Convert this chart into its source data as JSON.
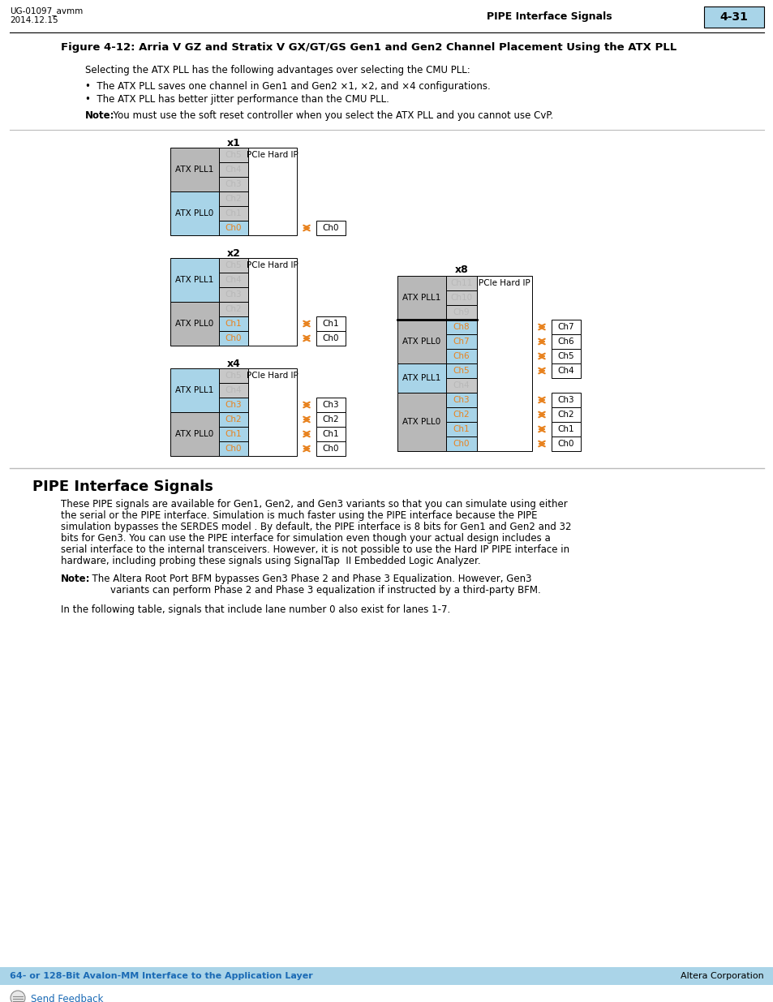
{
  "header_left1": "UG-01097_avmm",
  "header_left2": "2014.12.15",
  "header_center": "PIPE Interface Signals",
  "header_page": "4-31",
  "fig_title": "Figure 4-12: Arria V GZ and Stratix V GX/GT/GS Gen1 and Gen2 Channel Placement Using the ATX PLL",
  "para1": "Selecting the ATX PLL has the following advantages over selecting the CMU PLL:",
  "bullet1": "The ATX PLL saves one channel in Gen1 and Gen2 ×1, ×2, and ×4 configurations.",
  "bullet2": "The ATX PLL has better jitter performance than the CMU PLL.",
  "note1_bold": "Note:",
  "note1_text": "  You must use the soft reset controller when you select the ATX PLL and you cannot use CvP.",
  "section_title": "PIPE Interface Signals",
  "body1_lines": [
    "These PIPE signals are available for Gen1, Gen2, and Gen3 variants so that you can simulate using either",
    "the serial or the PIPE interface. Simulation is much faster using the PIPE interface because the PIPE",
    "simulation bypasses the SERDES model . By default, the PIPE interface is 8 bits for Gen1 and Gen2 and 32",
    "bits for Gen3. You can use the PIPE interface for simulation even though your actual design includes a",
    "serial interface to the internal transceivers. However, it is not possible to use the Hard IP PIPE interface in",
    "hardware, including probing these signals using SignalTap  II Embedded Logic Analyzer."
  ],
  "note2_bold": "Note:",
  "note2_line1": "  The Altera Root Port BFM bypasses Gen3 Phase 2 and Phase 3 Equalization. However, Gen3",
  "note2_line2": "        variants can perform Phase 2 and Phase 3 equalization if instructed by a third-party BFM.",
  "body2": "In the following table, signals that include lane number 0 also exist for lanes 1-7.",
  "footer_left": "64- or 128-Bit Avalon-MM Interface to the Application Layer",
  "footer_right": "Altera Corporation",
  "feedback_text": "Send Feedback",
  "color_blue": "#a8d4e8",
  "color_gray_pll": "#b8b8b8",
  "color_gray_ch": "#c8c8c8",
  "color_orange": "#e8821e",
  "color_footer": "#aad4e8",
  "color_link": "#1a6ab5"
}
